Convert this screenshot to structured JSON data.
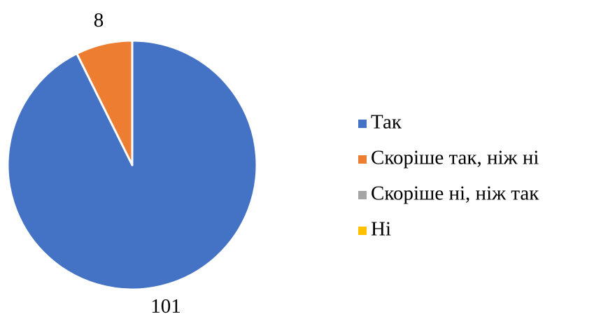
{
  "chart_data": {
    "type": "pie",
    "categories": [
      "Так",
      "Скоріше так, ніж ні",
      "Скоріше ні, ніж так",
      "Ні"
    ],
    "values": [
      101,
      8,
      0,
      0
    ],
    "colors": [
      "#4472c4",
      "#ed7d31",
      "#a5a5a5",
      "#ffc000"
    ],
    "legend": "right"
  }
}
